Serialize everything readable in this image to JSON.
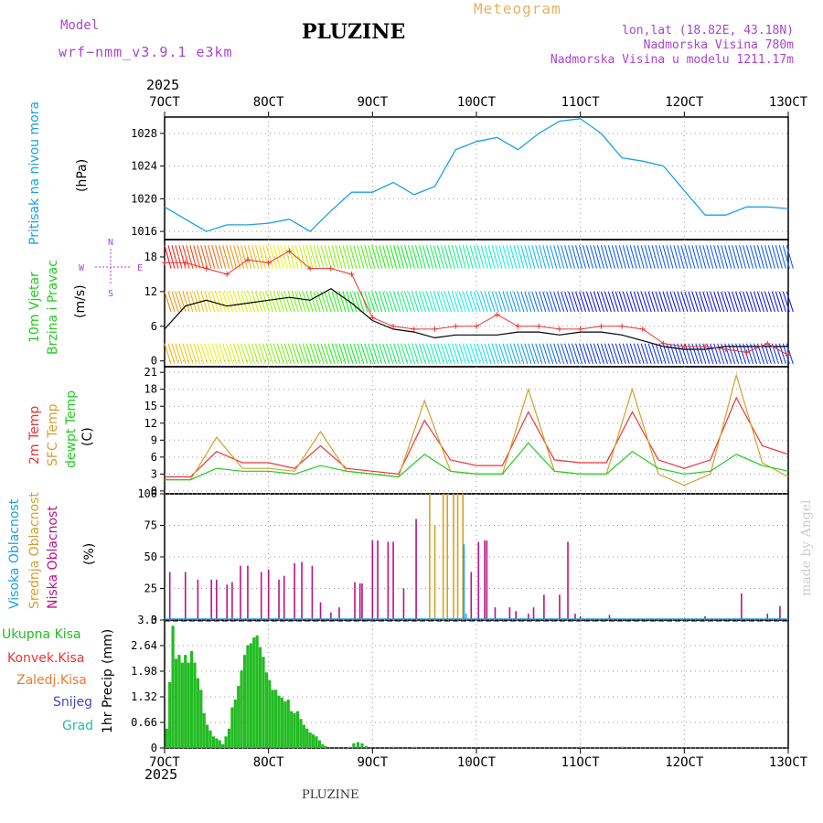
{
  "header": {
    "model_label": "Model",
    "model_name": "wrf−nmm_v3.9.1  e3km",
    "title": "PLUZINE",
    "meteogram_label": "Meteogram",
    "lonlat": "lon,lat (18.82E, 43.18N)",
    "elevation": "Nadmorska Visina 780m",
    "model_elevation": "Nadmorska Visina u modelu 1211.17m",
    "year_top": "2025",
    "year_bottom": "2025",
    "footer_title": "PLUZINE",
    "credit": "made by Angel"
  },
  "colors": {
    "pressure": "#1ba1e2",
    "temp2m": "#ee3333",
    "sfc_temp": "#d4a030",
    "dewpt": "#22cc22",
    "gust": "#000000",
    "gust_marker": "#ee3333",
    "cloud_low": "#bb1188",
    "cloud_mid": "#d8a020",
    "cloud_high": "#1ba1e2",
    "precip": "#22bb22",
    "label_magenta": "#aa44cc",
    "label_orange": "#e8b060"
  },
  "chart_data": [
    {
      "panel": "pressure",
      "type": "line",
      "ylabel_left": "Pritisak na nivou mora",
      "ylabel_unit": "(hPa)",
      "yticks": [
        1016,
        1020,
        1024,
        1028
      ],
      "ylim": [
        1015,
        1030
      ],
      "x_day": [
        7.0,
        7.2,
        7.4,
        7.6,
        7.8,
        8.0,
        8.2,
        8.4,
        8.6,
        8.8,
        9.0,
        9.2,
        9.4,
        9.6,
        9.8,
        10.0,
        10.2,
        10.4,
        10.6,
        10.8,
        11.0,
        11.2,
        11.4,
        11.6,
        11.8,
        12.0,
        12.2,
        12.4,
        12.6,
        12.8,
        13.0
      ],
      "values": [
        1019,
        1017.5,
        1016,
        1016.8,
        1016.8,
        1017,
        1017.5,
        1016,
        1018.5,
        1020.8,
        1020.8,
        1022,
        1020.5,
        1021.5,
        1026,
        1027,
        1027.5,
        1026,
        1028,
        1029.5,
        1029.8,
        1028,
        1025,
        1024.6,
        1024,
        1021,
        1018,
        1018,
        1019,
        1019,
        1018.8
      ]
    },
    {
      "panel": "wind",
      "type": "line",
      "ylabel_left_1": "10m Vjetar",
      "ylabel_left_2": "Brzina i Pravac",
      "ylabel_unit": "(m/s)",
      "compass_n": "N",
      "compass_s": "S",
      "compass_w": "W",
      "compass_e": "E",
      "yticks": [
        0,
        6,
        12,
        18
      ],
      "ylim": [
        -1,
        21
      ],
      "series": [
        {
          "name": "gust",
          "x_day": [
            7.0,
            7.2,
            7.4,
            7.6,
            7.8,
            8.0,
            8.2,
            8.4,
            8.6,
            8.8,
            9.0,
            9.2,
            9.4,
            9.6,
            9.8,
            10.0,
            10.2,
            10.4,
            10.6,
            10.8,
            11.0,
            11.2,
            11.4,
            11.6,
            11.8,
            12.0,
            12.2,
            12.4,
            12.6,
            12.8,
            13.0
          ],
          "values": [
            5.5,
            9.5,
            10.5,
            9.5,
            10,
            10.5,
            11,
            10.5,
            12.5,
            10,
            7,
            5.5,
            5,
            4,
            4.5,
            4.5,
            4.5,
            5,
            5,
            4.5,
            5,
            5,
            4.5,
            3.5,
            2.5,
            2,
            2,
            2.5,
            2.5,
            2.5,
            2.5
          ]
        },
        {
          "name": "gust_marker",
          "x_day": [
            7.0,
            7.2,
            7.4,
            7.6,
            7.8,
            8.0,
            8.2,
            8.4,
            8.6,
            8.8,
            9.0,
            9.2,
            9.4,
            9.6,
            9.8,
            10.0,
            10.2,
            10.4,
            10.6,
            10.8,
            11.0,
            11.2,
            11.4,
            11.6,
            11.8,
            12.0,
            12.2,
            12.4,
            12.6,
            12.8,
            13.0
          ],
          "values": [
            17,
            17,
            16,
            15,
            17.5,
            17,
            19,
            16,
            16,
            15,
            7.5,
            6,
            5.5,
            5.5,
            6,
            6,
            8,
            6,
            6,
            5.5,
            5.5,
            6,
            6,
            5.5,
            3,
            2.5,
            2.5,
            2,
            1.5,
            3,
            1
          ]
        }
      ]
    },
    {
      "panel": "temperature",
      "type": "line",
      "ylabel_left_1": "2m Temp",
      "ylabel_left_2": "SFC Temp",
      "ylabel_left_3": "dewpt Temp",
      "ylabel_unit": "(C)",
      "yticks": [
        0,
        3,
        6,
        9,
        12,
        15,
        18,
        21
      ],
      "ylim": [
        -0.5,
        22
      ],
      "series": [
        {
          "name": "2m Temp",
          "x_day": [
            7.0,
            7.25,
            7.5,
            7.75,
            8.0,
            8.25,
            8.5,
            8.75,
            9.0,
            9.25,
            9.5,
            9.75,
            10.0,
            10.25,
            10.5,
            10.75,
            11.0,
            11.25,
            11.5,
            11.75,
            12.0,
            12.25,
            12.5,
            12.75,
            13.0
          ],
          "values": [
            2.5,
            2.5,
            7,
            5,
            5,
            4,
            8,
            4,
            3.5,
            3,
            12.5,
            5.5,
            4.5,
            4.5,
            14,
            5.5,
            5,
            5,
            14,
            5.5,
            4,
            5.5,
            16.5,
            8,
            6.5
          ]
        },
        {
          "name": "SFC Temp",
          "x_day": [
            7.0,
            7.25,
            7.5,
            7.75,
            8.0,
            8.25,
            8.5,
            8.75,
            9.0,
            9.25,
            9.5,
            9.75,
            10.0,
            10.25,
            10.5,
            10.75,
            11.0,
            11.25,
            11.5,
            11.75,
            12.0,
            12.25,
            12.5,
            12.75,
            13.0
          ],
          "values": [
            2,
            2,
            9.5,
            4,
            4,
            3.5,
            10.5,
            3.5,
            3,
            2.5,
            16,
            3.5,
            3,
            3,
            18,
            3.5,
            3,
            3,
            18,
            3,
            1,
            3,
            20.5,
            5,
            2.5
          ]
        },
        {
          "name": "dewpt Temp",
          "x_day": [
            7.0,
            7.25,
            7.5,
            7.75,
            8.0,
            8.25,
            8.5,
            8.75,
            9.0,
            9.25,
            9.5,
            9.75,
            10.0,
            10.25,
            10.5,
            10.75,
            11.0,
            11.25,
            11.5,
            11.75,
            12.0,
            12.25,
            12.5,
            12.75,
            13.0
          ],
          "values": [
            2,
            2,
            4,
            3.5,
            3.5,
            3,
            4.5,
            3.5,
            3,
            2.5,
            6.5,
            3.5,
            3,
            3,
            8.5,
            3.5,
            3,
            3,
            7,
            4,
            3,
            3.5,
            6.5,
            4.5,
            3.5
          ]
        }
      ]
    },
    {
      "panel": "clouds",
      "type": "bar",
      "ylabel_left_1": "Visoka Oblacnost",
      "ylabel_left_2": "Srednja Oblacnost",
      "ylabel_left_3": "Niska Oblacnost",
      "ylabel_unit": "(%)",
      "yticks": [
        0,
        25,
        50,
        75,
        100
      ],
      "ylim": [
        0,
        100
      ],
      "series": [
        {
          "name": "Niska Oblacnost",
          "x_day": [
            7.05,
            7.2,
            7.32,
            7.45,
            7.5,
            7.6,
            7.65,
            7.73,
            7.8,
            7.93,
            8.0,
            8.1,
            8.15,
            8.25,
            8.32,
            8.42,
            8.5,
            8.6,
            8.68,
            8.83,
            8.88,
            8.9,
            9.0,
            9.05,
            9.15,
            9.2,
            9.3,
            9.42,
            9.95,
            10.02,
            10.08,
            10.1,
            10.18,
            10.32,
            10.38,
            10.5,
            10.55,
            10.65,
            10.8,
            10.88,
            10.95,
            11.0,
            11.28,
            12.2,
            12.55,
            12.8,
            12.92
          ],
          "values": [
            38,
            38,
            32,
            32,
            32,
            28,
            30,
            43,
            43,
            38,
            40,
            32,
            35,
            45,
            46,
            43,
            14,
            6,
            10,
            30,
            29,
            29,
            63,
            63,
            62,
            62,
            25,
            80,
            38,
            62,
            63,
            63,
            10,
            10,
            7,
            5,
            10,
            20,
            20,
            62,
            5,
            3,
            4,
            3,
            21,
            5,
            11
          ]
        },
        {
          "name": "Srednja Oblacnost",
          "x_day": [
            9.55,
            9.6,
            9.68,
            9.72,
            9.78,
            9.82,
            9.87
          ],
          "values": [
            100,
            75,
            100,
            100,
            100,
            100,
            100
          ]
        },
        {
          "name": "Visoka Oblacnost",
          "x_day": [
            9.88,
            9.9
          ],
          "values": [
            60,
            5
          ]
        }
      ]
    },
    {
      "panel": "precipitation",
      "type": "bar",
      "ylabel_left_1": "1hr Precip",
      "ylabel_unit": "(mm)",
      "legend": [
        "Ukupna Kisa",
        "Konvek.Kisa",
        "Zaledj.Kisa",
        "Snijeg",
        "Grad"
      ],
      "yticks": [
        0,
        0.66,
        1.32,
        1.98,
        2.64,
        3.3
      ],
      "ytick_labels": [
        "0",
        "0.66",
        "1.32",
        "1.98",
        "2.64",
        "3.3"
      ],
      "ylim": [
        0,
        3.3
      ],
      "x_day": [
        7.02,
        7.05,
        7.08,
        7.11,
        7.14,
        7.17,
        7.2,
        7.23,
        7.26,
        7.29,
        7.32,
        7.35,
        7.38,
        7.41,
        7.44,
        7.47,
        7.5,
        7.53,
        7.56,
        7.59,
        7.62,
        7.65,
        7.68,
        7.71,
        7.74,
        7.77,
        7.8,
        7.83,
        7.86,
        7.89,
        7.92,
        7.95,
        7.98,
        8.01,
        8.04,
        8.07,
        8.1,
        8.13,
        8.16,
        8.19,
        8.22,
        8.25,
        8.28,
        8.31,
        8.34,
        8.37,
        8.4,
        8.43,
        8.46,
        8.49,
        8.52,
        8.55,
        8.78,
        8.82,
        8.86,
        8.9,
        8.94,
        9.2,
        9.4,
        11.0,
        11.4
      ],
      "values": [
        0.5,
        1.7,
        3.15,
        2.3,
        2.4,
        2.2,
        2.4,
        2.2,
        2.5,
        2.2,
        1.8,
        1.5,
        0.9,
        0.6,
        0.45,
        0.3,
        0.25,
        0.2,
        0.1,
        0.3,
        0.5,
        1.05,
        1.25,
        1.6,
        2.0,
        2.4,
        2.65,
        2.7,
        2.85,
        2.9,
        2.6,
        2.35,
        1.95,
        1.75,
        1.5,
        1.5,
        1.35,
        1.3,
        1.2,
        1.25,
        0.95,
        0.9,
        0.95,
        0.75,
        0.6,
        0.5,
        0.4,
        0.35,
        0.3,
        0.2,
        0.1,
        0.05,
        0.03,
        0.12,
        0.15,
        0.12,
        0.05,
        0.03,
        0.03,
        0.03,
        0.03
      ]
    }
  ],
  "x_axis": {
    "top_labels": [
      "7OCT",
      "8OCT",
      "9OCT",
      "10OCT",
      "11OCT",
      "12OCT",
      "13OCT"
    ],
    "bottom_labels": [
      "7OCT",
      "8OCT",
      "9OCT",
      "10OCT",
      "11OCT",
      "12OCT",
      "13OCT"
    ],
    "days": [
      7,
      8,
      9,
      10,
      11,
      12,
      13
    ]
  }
}
